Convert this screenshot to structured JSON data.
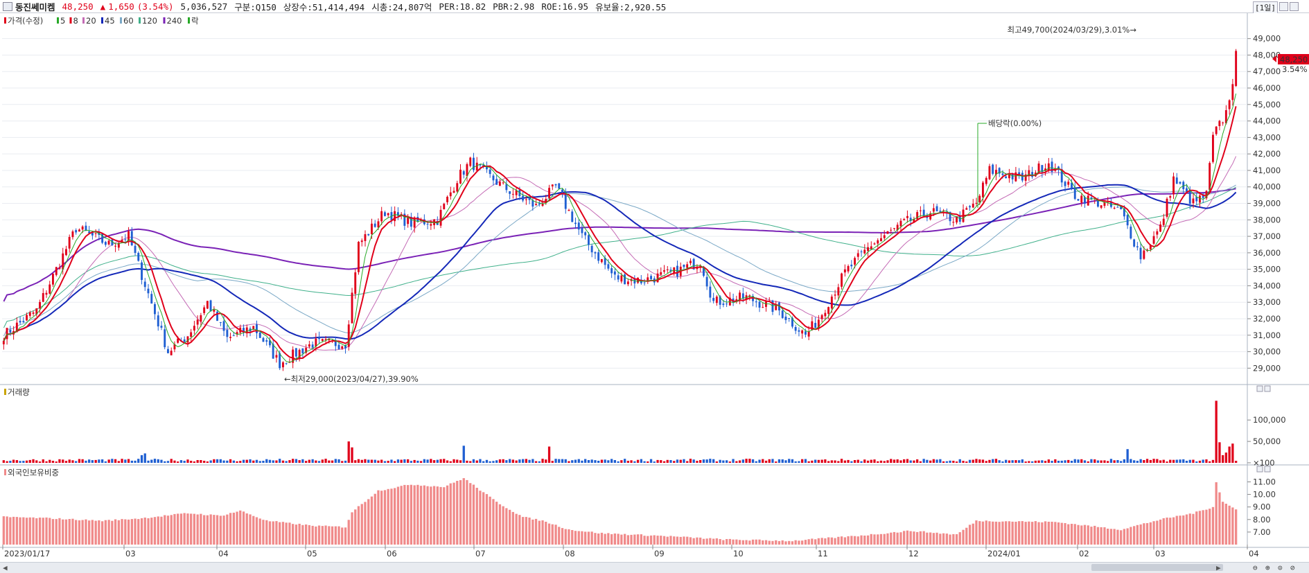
{
  "header": {
    "name": "동진쎄미켐",
    "price": "48,250",
    "arrow": "▲",
    "change": "1,650",
    "change_pct": "(3.54%)",
    "volume": "5,036,527",
    "market": "구분:Q150",
    "shares": "상장수:51,414,494",
    "cap": "시총:24,807억",
    "per": "PER:18.82",
    "pbr": "PBR:2.98",
    "roe": "ROE:16.95",
    "float": "유보율:2,920.55",
    "period": "[1일]"
  },
  "colors": {
    "up": "#e0001a",
    "down": "#1f5fd2",
    "ma5": "#27a927",
    "ma8": "#e0001a",
    "ma20": "#c46bb5",
    "ma45": "#1428b8",
    "ma60": "#7aa8c6",
    "ma120": "#3fb08a",
    "ma240": "#7a22b6",
    "foreign": "#f08a8a"
  },
  "chart_data": [
    {
      "type": "candlestick",
      "panel": "price",
      "legend": [
        "가격(수정)",
        "5",
        "8",
        "20",
        "45",
        "60",
        "120",
        "240",
        "락"
      ],
      "x_ticks": [
        "2023/01/17",
        "03",
        "04",
        "05",
        "06",
        "07",
        "08",
        "09",
        "10",
        "11",
        "12",
        "2024/01",
        "02",
        "03",
        "04"
      ],
      "y_ticks": [
        29000,
        30000,
        31000,
        32000,
        33000,
        34000,
        35000,
        36000,
        37000,
        38000,
        39000,
        40000,
        41000,
        42000,
        43000,
        44000,
        45000,
        46000,
        47000,
        48000,
        49000
      ],
      "y_tick_labels": [
        "29,000",
        "30,000",
        "31,000",
        "32,000",
        "33,000",
        "34,000",
        "35,000",
        "36,000",
        "37,000",
        "38,000",
        "39,000",
        "40,000",
        "41,000",
        "42,000",
        "43,000",
        "44,000",
        "45,000",
        "46,000",
        "47,000",
        "48,000",
        "49,000"
      ],
      "ylim": [
        28300,
        50500
      ],
      "close_anchors": [
        [
          0,
          31000
        ],
        [
          10,
          32500
        ],
        [
          22,
          37500
        ],
        [
          32,
          36500
        ],
        [
          38,
          37000
        ],
        [
          44,
          33500
        ],
        [
          50,
          30000
        ],
        [
          56,
          31000
        ],
        [
          62,
          33000
        ],
        [
          68,
          30800
        ],
        [
          76,
          31500
        ],
        [
          84,
          29300
        ],
        [
          94,
          30500
        ],
        [
          104,
          30500
        ],
        [
          108,
          36500
        ],
        [
          116,
          38500
        ],
        [
          124,
          37800
        ],
        [
          132,
          38000
        ],
        [
          138,
          40500
        ],
        [
          142,
          41500
        ],
        [
          152,
          40000
        ],
        [
          162,
          38800
        ],
        [
          168,
          40000
        ],
        [
          176,
          37000
        ],
        [
          186,
          34500
        ],
        [
          194,
          34300
        ],
        [
          204,
          34800
        ],
        [
          212,
          35500
        ],
        [
          216,
          33000
        ],
        [
          226,
          33300
        ],
        [
          236,
          32500
        ],
        [
          244,
          31000
        ],
        [
          248,
          32000
        ],
        [
          256,
          34800
        ],
        [
          264,
          36500
        ],
        [
          274,
          37800
        ],
        [
          282,
          38500
        ],
        [
          290,
          38000
        ],
        [
          296,
          39000
        ],
        [
          300,
          41000
        ],
        [
          310,
          40500
        ],
        [
          318,
          41500
        ],
        [
          326,
          39500
        ],
        [
          334,
          39000
        ],
        [
          340,
          38500
        ],
        [
          346,
          35800
        ],
        [
          352,
          37500
        ],
        [
          356,
          40500
        ],
        [
          362,
          39000
        ],
        [
          366,
          39500
        ],
        [
          368,
          43000
        ],
        [
          372,
          44500
        ],
        [
          374,
          46500
        ],
        [
          375,
          48250
        ]
      ],
      "candles": 376,
      "last_close": 48250,
      "annotations": {
        "high": "최고49,700(2024/03/29),3.01%→",
        "low": "←최저29,000(2023/04/27),39.90%",
        "dividend": "배당락(0.00%)",
        "last_price": "48,250",
        "last_pct": "3.54%"
      }
    },
    {
      "type": "bar",
      "panel": "volume",
      "legend": [
        "거래량"
      ],
      "y_ticks": [
        100,
        50000,
        100000
      ],
      "y_tick_labels": [
        "×100",
        "50,000",
        "100,000"
      ],
      "ylim": [
        0,
        165000
      ],
      "base": 6000,
      "spikes": [
        [
          42,
          18000
        ],
        [
          43,
          22000
        ],
        [
          105,
          50000
        ],
        [
          106,
          36000
        ],
        [
          140,
          40000
        ],
        [
          166,
          38000
        ],
        [
          342,
          32000
        ],
        [
          369,
          145000
        ],
        [
          370,
          48000
        ],
        [
          371,
          18000
        ],
        [
          372,
          24000
        ],
        [
          373,
          38000
        ],
        [
          374,
          45000
        ]
      ]
    },
    {
      "type": "bar",
      "panel": "foreign_ownership",
      "legend": [
        "외국인보유비중"
      ],
      "y_ticks": [
        7,
        8,
        9,
        10,
        11
      ],
      "y_tick_labels": [
        "7.00",
        "8.00",
        "9.00",
        "10.00",
        "11.00"
      ],
      "ylim": [
        6.0,
        11.8
      ],
      "anchors": [
        [
          0,
          8.2
        ],
        [
          14,
          8.1
        ],
        [
          30,
          7.9
        ],
        [
          42,
          8.1
        ],
        [
          56,
          8.5
        ],
        [
          66,
          8.3
        ],
        [
          72,
          8.7
        ],
        [
          80,
          7.9
        ],
        [
          94,
          7.5
        ],
        [
          104,
          7.4
        ],
        [
          106,
          8.6
        ],
        [
          114,
          10.3
        ],
        [
          124,
          10.8
        ],
        [
          134,
          10.6
        ],
        [
          140,
          11.3
        ],
        [
          150,
          9.4
        ],
        [
          158,
          8.2
        ],
        [
          164,
          7.9
        ],
        [
          172,
          7.2
        ],
        [
          182,
          6.9
        ],
        [
          200,
          6.7
        ],
        [
          220,
          6.4
        ],
        [
          240,
          6.3
        ],
        [
          260,
          6.7
        ],
        [
          276,
          7.1
        ],
        [
          290,
          6.8
        ],
        [
          296,
          7.9
        ],
        [
          320,
          7.8
        ],
        [
          340,
          7.2
        ],
        [
          352,
          8.0
        ],
        [
          362,
          8.5
        ],
        [
          368,
          9.0
        ],
        [
          369,
          11.0
        ],
        [
          371,
          9.4
        ],
        [
          375,
          8.8
        ]
      ]
    }
  ]
}
